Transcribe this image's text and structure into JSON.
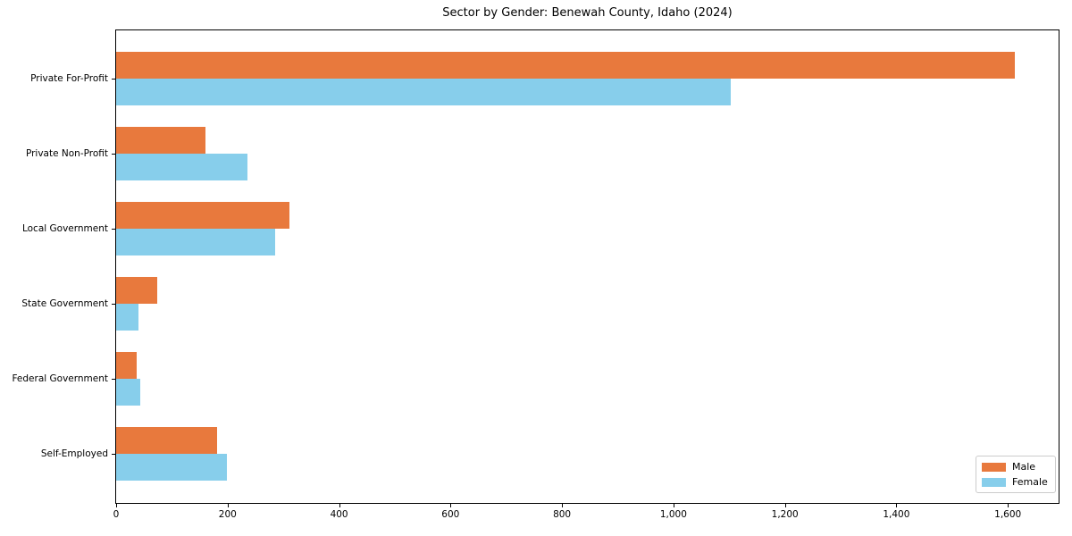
{
  "chart_data": {
    "type": "bar",
    "orientation": "horizontal",
    "title": "Sector by Gender: Benewah County, Idaho (2024)",
    "categories": [
      "Private For-Profit",
      "Private Non-Profit",
      "Local Government",
      "State Government",
      "Federal Government",
      "Self-Employed"
    ],
    "series": [
      {
        "name": "Male",
        "color": "#E8793D",
        "values": [
          1612,
          160,
          311,
          74,
          36,
          181
        ]
      },
      {
        "name": "Female",
        "color": "#87CEEB",
        "values": [
          1102,
          236,
          286,
          40,
          43,
          198
        ]
      }
    ],
    "xlabel": "",
    "ylabel": "",
    "xlim": [
      0,
      1691
    ],
    "xticks": [
      0,
      200,
      400,
      600,
      800,
      1000,
      1200,
      1400,
      1600
    ],
    "xtick_labels": [
      "0",
      "200",
      "400",
      "600",
      "800",
      "1,000",
      "1,200",
      "1,400",
      "1,600"
    ],
    "grid": false,
    "legend": {
      "position": "lower-right",
      "entries": [
        "Male",
        "Female"
      ]
    }
  }
}
